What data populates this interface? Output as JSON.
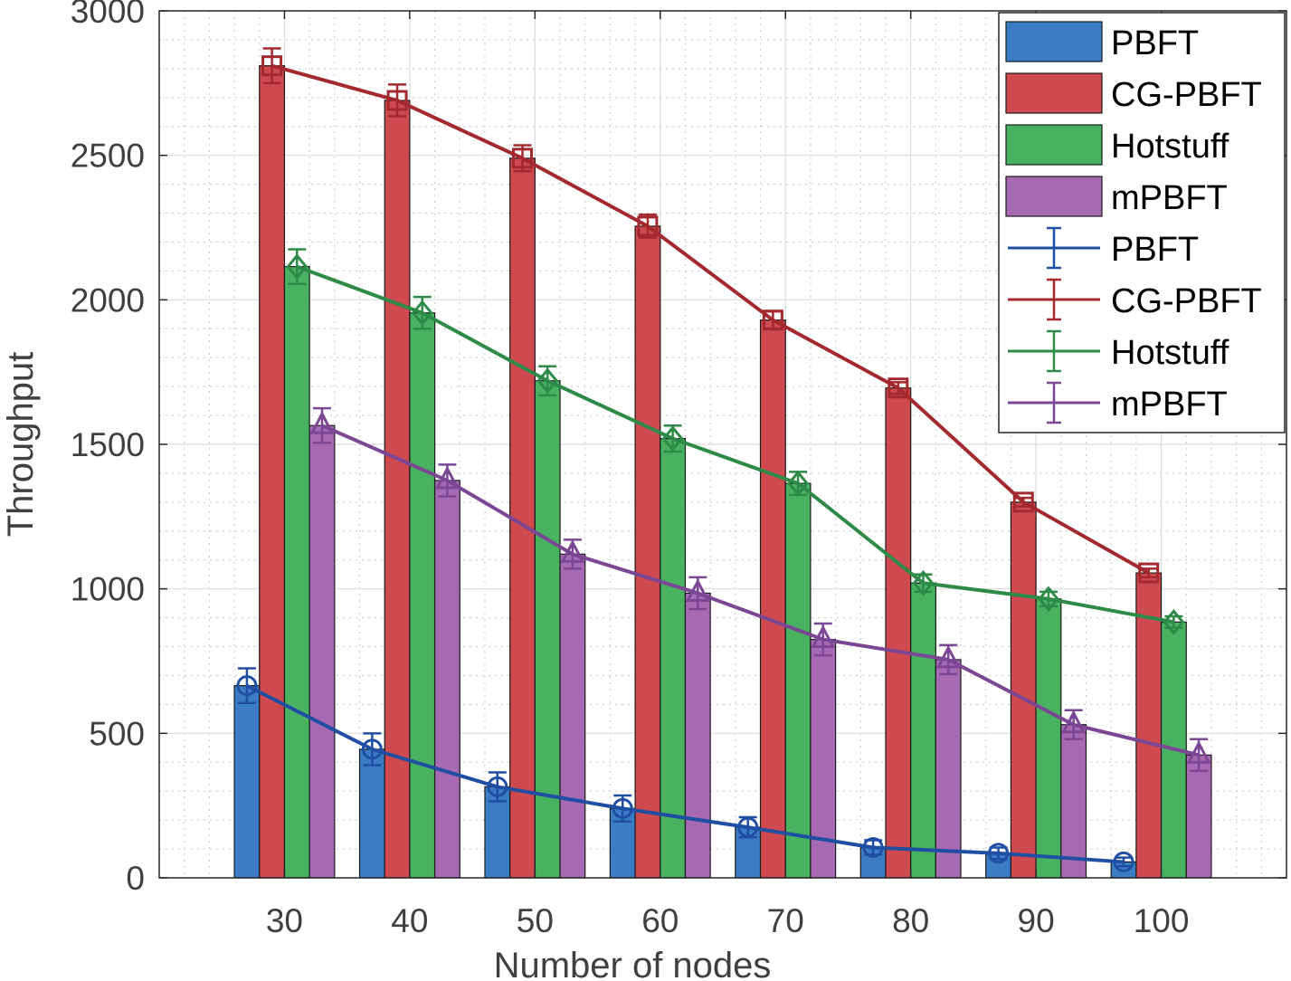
{
  "chart_data": {
    "type": "bar",
    "title": "",
    "xlabel": "Number of nodes",
    "ylabel": "Throughput",
    "categories": [
      "30",
      "40",
      "50",
      "60",
      "70",
      "80",
      "90",
      "100"
    ],
    "xlim": [
      20,
      110
    ],
    "ylim": [
      0,
      3000
    ],
    "yticks": [
      "0",
      "500",
      "1000",
      "1500",
      "2000",
      "2500",
      "3000"
    ],
    "grid": "major and minor",
    "legend_position": "top-right",
    "series": [
      {
        "name": "PBFT",
        "color": "#3a7dc4",
        "line_color": "#1f4ea3",
        "marker": "circle",
        "values": [
          665,
          445,
          315,
          240,
          175,
          105,
          85,
          55
        ],
        "errors": [
          60,
          55,
          50,
          45,
          35,
          25,
          20,
          15
        ]
      },
      {
        "name": "CG-PBFT",
        "color": "#cf4a4e",
        "line_color": "#a3292e",
        "marker": "square",
        "values": [
          2810,
          2690,
          2490,
          2255,
          1930,
          1695,
          1300,
          1055
        ],
        "errors": [
          60,
          55,
          45,
          40,
          30,
          20,
          15,
          15
        ]
      },
      {
        "name": "Hotstuff",
        "color": "#49b261",
        "line_color": "#2d8a47",
        "marker": "diamond",
        "values": [
          2115,
          1955,
          1720,
          1520,
          1365,
          1020,
          965,
          885
        ],
        "errors": [
          60,
          55,
          50,
          45,
          40,
          30,
          25,
          20
        ]
      },
      {
        "name": "mPBFT",
        "color": "#a66ab3",
        "line_color": "#7b4794",
        "marker": "triangle",
        "values": [
          1565,
          1375,
          1120,
          985,
          825,
          755,
          530,
          425
        ],
        "errors": [
          60,
          55,
          50,
          55,
          55,
          50,
          50,
          55
        ]
      }
    ],
    "legend_bar_labels": [
      "PBFT",
      "CG-PBFT",
      "Hotstuff",
      "mPBFT"
    ],
    "legend_line_labels": [
      "PBFT",
      "CG-PBFT",
      "Hotstuff",
      "mPBFT"
    ]
  }
}
